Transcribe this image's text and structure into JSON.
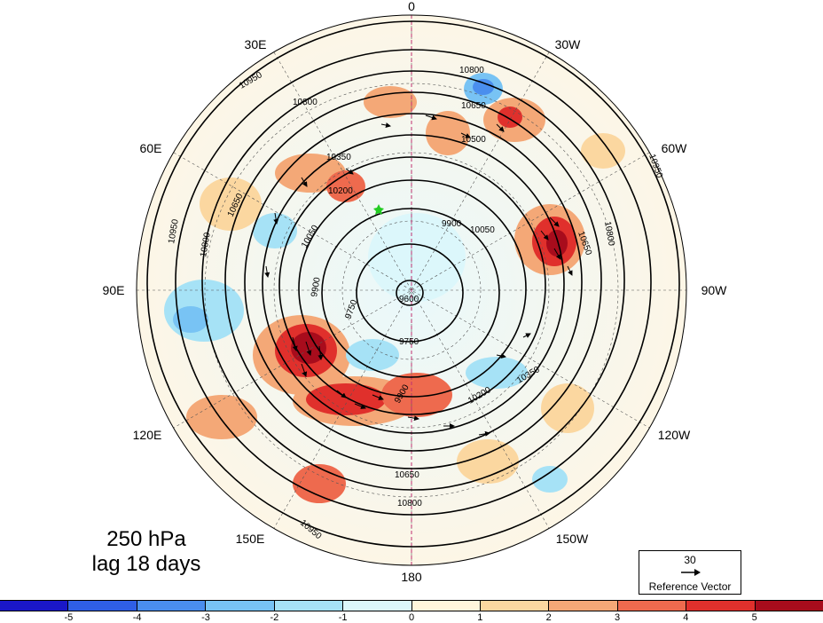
{
  "title": {
    "line1": "250 hPa",
    "line2": "lag 18 days"
  },
  "longitude_labels": {
    "lon_0": "0",
    "lon_30w": "30W",
    "lon_60w": "60W",
    "lon_90w": "90W",
    "lon_120w": "120W",
    "lon_150w": "150W",
    "lon_180": "180",
    "lon_150e": "150E",
    "lon_120e": "120E",
    "lon_90e": "90E",
    "lon_60e": "60E",
    "lon_30e": "30E"
  },
  "contour_labels": {
    "c9600": "9600",
    "c9750a": "9750",
    "c9750b": "9750",
    "c9900a": "9900",
    "c9900b": "9900",
    "c9900c": "9900",
    "c10050a": "10050",
    "c10050b": "10050",
    "c10200a": "10200",
    "c10200b": "10200",
    "c10350a": "10350",
    "c10350b": "10350",
    "c10500a": "10500",
    "c10650a": "10650",
    "c10650b": "10650",
    "c10650c": "10650",
    "c10650d": "10650",
    "c10800a": "10800",
    "c10800b": "10800",
    "c10800c": "10800",
    "c10800d": "10800",
    "c10800e": "10800",
    "c10950a": "10950",
    "c10950b": "10950",
    "c10950c": "10950",
    "c10950d": "10950"
  },
  "reference_vector": {
    "magnitude": "30",
    "label": "Reference Vector"
  },
  "colorbar": {
    "ticks": [
      "-5",
      "-4",
      "-3",
      "-2",
      "-1",
      "0",
      "1",
      "2",
      "3",
      "4",
      "5"
    ],
    "colors": [
      "#1a17c8",
      "#2f5fe6",
      "#4a8eee",
      "#78c3f4",
      "#a6e2f6",
      "#dcf7fb",
      "#fff6dc",
      "#fbd7a0",
      "#f4a877",
      "#ee6a4e",
      "#e0302c",
      "#a80c1c"
    ]
  },
  "marker": {
    "color": "#22cc22"
  }
}
